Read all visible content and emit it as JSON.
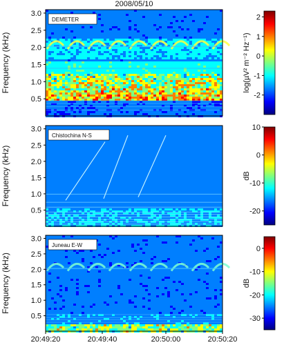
{
  "chart_data": {
    "type": "heatmap",
    "title": "2008/05/10",
    "x_tick_labels": [
      "20:49:20",
      "20:49:40",
      "20:50:00",
      "20:50:20"
    ],
    "panels": [
      {
        "label": "DEMETER",
        "ylabel": "Frequency (kHz)",
        "ylim": [
          0,
          3.1
        ],
        "yticks": [
          0.5,
          1.0,
          1.5,
          2.0,
          2.5,
          3.0
        ],
        "y_tick_labels": [
          "0.5",
          "1.0",
          "1.5",
          "2.0",
          "2.5",
          "3.0"
        ],
        "colorbar_label": "log(µV² m⁻² Hz⁻¹)",
        "colorbar_range": [
          -3,
          2.3
        ],
        "colorbar_ticks": [
          2,
          1,
          0,
          -1,
          -2
        ],
        "colorbar_tick_labels": [
          "2",
          "1",
          "0",
          "-1",
          "-2"
        ],
        "features": [
          "periodic chorus elements near 2.0 kHz",
          "strong broadband hiss 0.5-1.2 kHz",
          "line emissions below 0.5 kHz"
        ]
      },
      {
        "label": "Chistochina N-S",
        "ylabel": "Frequency (kHz)",
        "ylim": [
          0,
          3.1
        ],
        "yticks": [
          0.5,
          1.0,
          1.5,
          2.0,
          2.5,
          3.0
        ],
        "y_tick_labels": [
          "0.5",
          "1.0",
          "1.5",
          "2.0",
          "2.5",
          "3.0"
        ],
        "colorbar_label": "dB",
        "colorbar_range": [
          -25,
          10
        ],
        "colorbar_ticks": [
          10,
          0,
          -10,
          -20
        ],
        "colorbar_tick_labels": [
          "10",
          "0",
          "-10",
          "-20"
        ],
        "features": [
          "three rising emissions reaching ~2.8 kHz",
          "harmonic power lines below 0.5 kHz"
        ]
      },
      {
        "label": "Juneau E-W",
        "ylabel": "Frequency (kHz)",
        "ylim": [
          0,
          3.1
        ],
        "yticks": [
          0.5,
          1.0,
          1.5,
          2.0,
          2.5,
          3.0
        ],
        "y_tick_labels": [
          "0.5",
          "1.0",
          "1.5",
          "2.0",
          "2.5",
          "3.0"
        ],
        "colorbar_label": "dB",
        "colorbar_range": [
          -35,
          5
        ],
        "colorbar_ticks": [
          0,
          -10,
          -20,
          -30
        ],
        "colorbar_tick_labels": [
          "0",
          "-10",
          "-20",
          "-30"
        ],
        "features": [
          "periodic chorus elements near 2.0 kHz",
          "low-frequency noise band below 0.3 kHz"
        ]
      }
    ],
    "colormap": [
      "#00007f",
      "#0000ff",
      "#007fff",
      "#00ffff",
      "#7fff7f",
      "#ffff00",
      "#ff7f00",
      "#ff0000",
      "#7f0000"
    ]
  }
}
